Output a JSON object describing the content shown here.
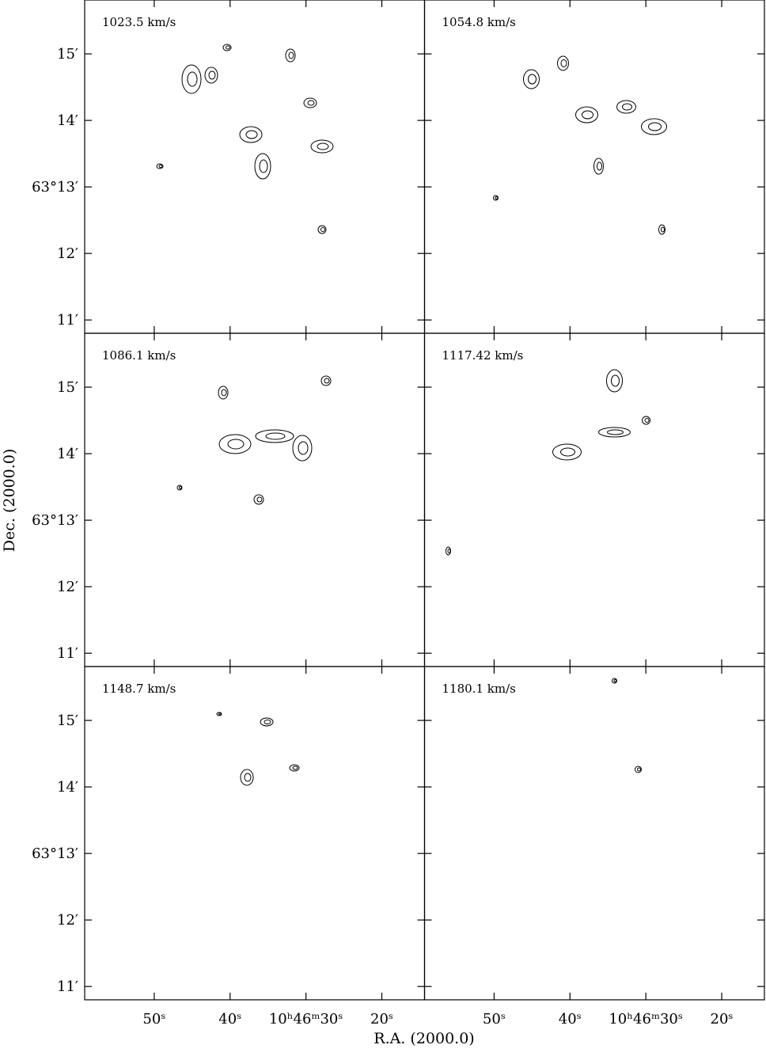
{
  "chart_data": {
    "type": "contour",
    "xlabel": "R.A. (2000.0)",
    "ylabel": "Dec. (2000.0)",
    "xlim": [
      59.17,
      14.37
    ],
    "ylim": [
      10.8,
      15.81
    ],
    "xticks": [
      {
        "value": 50,
        "label": "50ˢ"
      },
      {
        "value": 40,
        "label": "40ˢ"
      },
      {
        "value": 30,
        "label": "10ʰ46ᵐ30ˢ"
      },
      {
        "value": 20,
        "label": "20ˢ"
      }
    ],
    "yticks": [
      {
        "value": 11,
        "label": "11′"
      },
      {
        "value": 12,
        "label": "12′"
      },
      {
        "value": 13,
        "label": "63°13′"
      },
      {
        "value": 14,
        "label": "14′"
      },
      {
        "value": 15,
        "label": "15′"
      }
    ],
    "panels": [
      {
        "title": "1023.5 km/s"
      },
      {
        "title": "1054.8 km/s"
      },
      {
        "title": "1086.1 km/s"
      },
      {
        "title": "1117.42 km/s"
      },
      {
        "title": "1148.7 km/s"
      },
      {
        "title": "1180.1 km/s"
      }
    ]
  }
}
